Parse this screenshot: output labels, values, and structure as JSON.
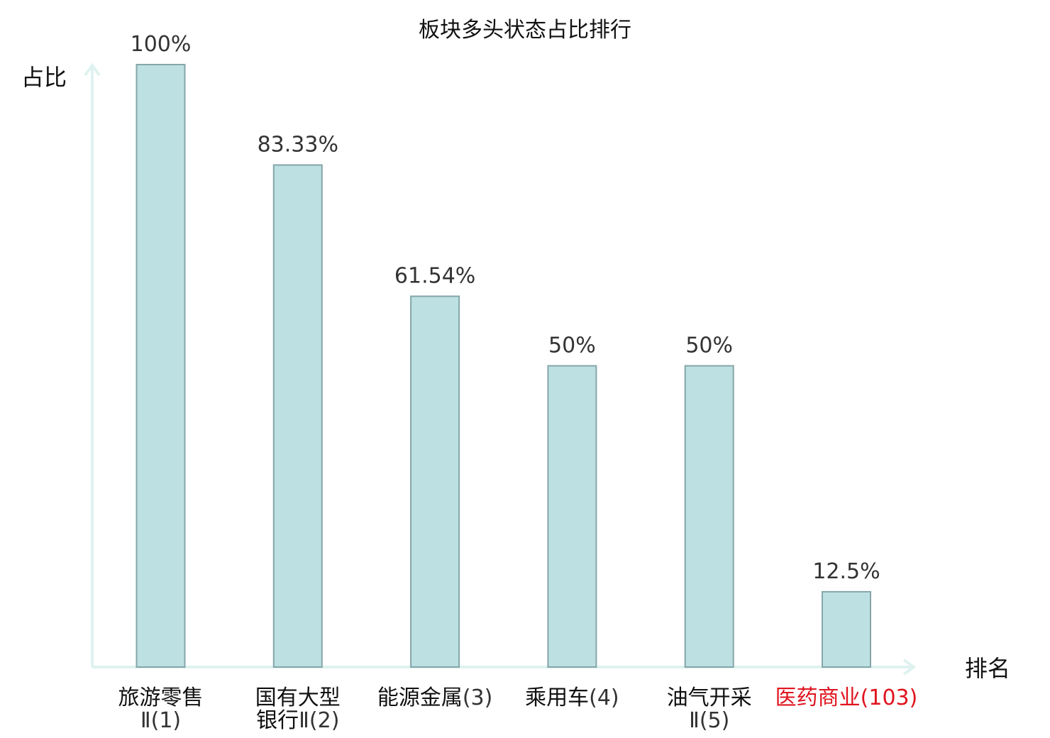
{
  "chart_data": {
    "type": "bar",
    "title": "板块多头状态占比排行",
    "ylabel": "占比",
    "xlabel": "排名",
    "ylim": [
      0,
      100
    ],
    "grid": false,
    "categories": [
      {
        "lines": [
          [
            {
              "text": "旅游零售",
              "style": "name"
            }
          ],
          [
            {
              "text": "Ⅱ(1)",
              "style": "rank"
            }
          ]
        ],
        "highlight": false
      },
      {
        "lines": [
          [
            {
              "text": "国有大型",
              "style": "name"
            }
          ],
          [
            {
              "text": "银行",
              "style": "name"
            },
            {
              "text": "Ⅱ(2)",
              "style": "rank"
            }
          ]
        ],
        "highlight": false
      },
      {
        "lines": [
          [
            {
              "text": "能源金属",
              "style": "name"
            },
            {
              "text": "(3)",
              "style": "rank"
            }
          ]
        ],
        "highlight": false
      },
      {
        "lines": [
          [
            {
              "text": "乘用车",
              "style": "name"
            },
            {
              "text": "(4)",
              "style": "rank"
            }
          ]
        ],
        "highlight": false
      },
      {
        "lines": [
          [
            {
              "text": "油气开采",
              "style": "name"
            }
          ],
          [
            {
              "text": "Ⅱ(5)",
              "style": "rank"
            }
          ]
        ],
        "highlight": false
      },
      {
        "lines": [
          [
            {
              "text": "医药商业",
              "style": "name"
            },
            {
              "text": "(103)",
              "style": "rank"
            }
          ]
        ],
        "highlight": true
      }
    ],
    "values": [
      100,
      83.33,
      61.54,
      50,
      50,
      12.5
    ],
    "value_labels": [
      "100%",
      "83.33%",
      "61.54%",
      "50%",
      "50%",
      "12.5%"
    ],
    "colors": {
      "bar_fill": "#bde0e3",
      "bar_stroke": "#85a6ab",
      "axis": "#dff2ef",
      "highlight_text": "#e0141e"
    }
  }
}
